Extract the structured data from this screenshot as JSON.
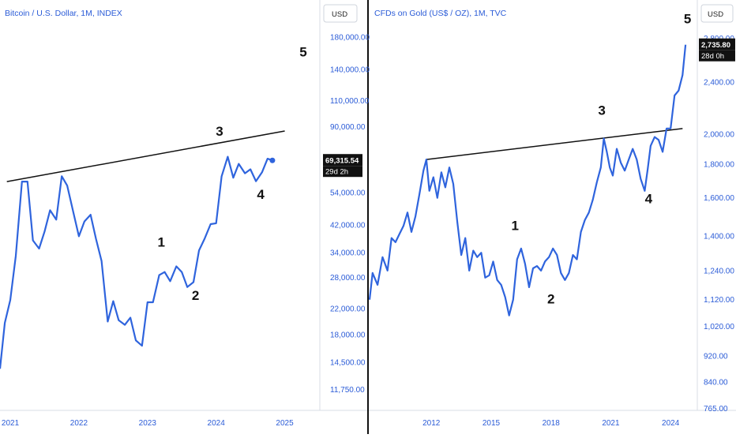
{
  "colors": {
    "series": "#2f64dd",
    "axis_text": "#2a5bd7",
    "trendline": "#111111",
    "divider": "#111111",
    "tag_bg": "#111111"
  },
  "chart_data": [
    {
      "type": "line",
      "title": "Bitcoin / U.S. Dollar, 1M, INDEX",
      "currency_label": "USD",
      "y_scale": "log",
      "ylim": [
        10000,
        240000
      ],
      "y_ticks": [
        {
          "label": "180,000.00",
          "value": 180000
        },
        {
          "label": "140,000.00",
          "value": 140000
        },
        {
          "label": "110,000.00",
          "value": 110000
        },
        {
          "label": "90,000.00",
          "value": 90000
        },
        {
          "label": "54,000.00",
          "value": 54000
        },
        {
          "label": "42,000.00",
          "value": 42000
        },
        {
          "label": "34,000.00",
          "value": 34000
        },
        {
          "label": "28,000.00",
          "value": 28000
        },
        {
          "label": "22,000.00",
          "value": 22000
        },
        {
          "label": "18,000.00",
          "value": 18000
        },
        {
          "label": "14,500.00",
          "value": 14500
        },
        {
          "label": "11,750.00",
          "value": 11750
        }
      ],
      "x_ticks": [
        {
          "label": "2021",
          "value": 2021.0
        },
        {
          "label": "2022",
          "value": 2022.0
        },
        {
          "label": "2023",
          "value": 2023.0
        },
        {
          "label": "2024",
          "value": 2024.0
        },
        {
          "label": "2025",
          "value": 2025.0
        }
      ],
      "xlim": [
        2020.85,
        2025.5
      ],
      "series": [
        {
          "x": [
            2020.85,
            2020.92,
            2021.0,
            2021.08,
            2021.17,
            2021.25,
            2021.33,
            2021.42,
            2021.5,
            2021.58,
            2021.67,
            2021.75,
            2021.83,
            2021.92,
            2022.0,
            2022.08,
            2022.17,
            2022.25,
            2022.33,
            2022.42,
            2022.5,
            2022.58,
            2022.67,
            2022.75,
            2022.83,
            2022.92,
            2023.0,
            2023.08,
            2023.17,
            2023.25,
            2023.33,
            2023.42,
            2023.5,
            2023.58,
            2023.67,
            2023.75,
            2023.83,
            2023.92,
            2024.0,
            2024.08,
            2024.17,
            2024.25,
            2024.33,
            2024.42,
            2024.5,
            2024.58,
            2024.67,
            2024.75,
            2024.82
          ],
          "y": [
            13800,
            19700,
            23500,
            33100,
            58800,
            58800,
            37300,
            35000,
            40000,
            47100,
            43800,
            61300,
            57000,
            46200,
            38500,
            43200,
            45500,
            37700,
            31800,
            19900,
            23300,
            20100,
            19400,
            20500,
            17200,
            16500,
            23100,
            23100,
            28500,
            29200,
            27200,
            30500,
            29200,
            26000,
            27000,
            34500,
            37700,
            42300,
            42600,
            61200,
            71300,
            60600,
            67500,
            62700,
            64700,
            59000,
            63300,
            70200,
            69315.54
          ]
        }
      ],
      "last_value_label": "69,315.54",
      "countdown_label": "29d 2h",
      "trendline": {
        "x": [
          2020.95,
          2025.0
        ],
        "y": [
          58800,
          87000
        ]
      },
      "annotations": [
        {
          "text": "1",
          "x": 2023.2,
          "y": 35500
        },
        {
          "text": "2",
          "x": 2023.7,
          "y": 23500
        },
        {
          "text": "3",
          "x": 2024.05,
          "y": 84000
        },
        {
          "text": "4",
          "x": 2024.65,
          "y": 51500
        },
        {
          "text": "5",
          "x": 2025.27,
          "y": 155000
        }
      ]
    },
    {
      "type": "line",
      "title": "CFDs on Gold (US$ / OZ), 1M, TVC",
      "currency_label": "USD",
      "y_scale": "log",
      "ylim": [
        760,
        3200
      ],
      "y_ticks": [
        {
          "label": "2,800.00",
          "value": 2800
        },
        {
          "label": "2,400.00",
          "value": 2400
        },
        {
          "label": "2,000.00",
          "value": 2000
        },
        {
          "label": "1,800.00",
          "value": 1800
        },
        {
          "label": "1,600.00",
          "value": 1600
        },
        {
          "label": "1,400.00",
          "value": 1400
        },
        {
          "label": "1,240.00",
          "value": 1240
        },
        {
          "label": "1,120.00",
          "value": 1120
        },
        {
          "label": "1,020.00",
          "value": 1020
        },
        {
          "label": "920.00",
          "value": 920
        },
        {
          "label": "840.00",
          "value": 840
        },
        {
          "label": "765.00",
          "value": 765
        }
      ],
      "x_ticks": [
        {
          "label": "2012",
          "value": 2012.0
        },
        {
          "label": "2015",
          "value": 2015.0
        },
        {
          "label": "2018",
          "value": 2018.0
        },
        {
          "label": "2021",
          "value": 2021.0
        },
        {
          "label": "2024",
          "value": 2024.0
        }
      ],
      "xlim": [
        2008.9,
        2025.3
      ],
      "series": [
        {
          "x": [
            2008.9,
            2009.05,
            2009.3,
            2009.55,
            2009.8,
            2010.0,
            2010.2,
            2010.4,
            2010.6,
            2010.8,
            2011.0,
            2011.2,
            2011.4,
            2011.6,
            2011.75,
            2011.9,
            2012.1,
            2012.3,
            2012.5,
            2012.7,
            2012.9,
            2013.1,
            2013.3,
            2013.5,
            2013.7,
            2013.9,
            2014.1,
            2014.3,
            2014.5,
            2014.7,
            2014.9,
            2015.1,
            2015.3,
            2015.5,
            2015.7,
            2015.9,
            2016.1,
            2016.3,
            2016.5,
            2016.7,
            2016.9,
            2017.1,
            2017.3,
            2017.5,
            2017.7,
            2017.9,
            2018.1,
            2018.3,
            2018.5,
            2018.7,
            2018.9,
            2019.1,
            2019.3,
            2019.5,
            2019.7,
            2019.9,
            2020.1,
            2020.3,
            2020.5,
            2020.65,
            2020.8,
            2020.95,
            2021.1,
            2021.3,
            2021.5,
            2021.7,
            2021.9,
            2022.1,
            2022.3,
            2022.5,
            2022.7,
            2022.85,
            2023.0,
            2023.2,
            2023.4,
            2023.6,
            2023.8,
            2024.0,
            2024.2,
            2024.4,
            2024.6,
            2024.75
          ],
          "y": [
            1120,
            1230,
            1180,
            1300,
            1240,
            1390,
            1370,
            1410,
            1450,
            1520,
            1420,
            1500,
            1620,
            1760,
            1830,
            1640,
            1720,
            1600,
            1750,
            1660,
            1780,
            1680,
            1470,
            1310,
            1390,
            1240,
            1330,
            1300,
            1320,
            1210,
            1220,
            1280,
            1200,
            1180,
            1130,
            1060,
            1120,
            1290,
            1340,
            1270,
            1170,
            1250,
            1260,
            1240,
            1280,
            1300,
            1340,
            1310,
            1230,
            1200,
            1230,
            1310,
            1290,
            1420,
            1480,
            1520,
            1590,
            1690,
            1780,
            1970,
            1880,
            1780,
            1730,
            1900,
            1810,
            1760,
            1830,
            1900,
            1830,
            1710,
            1640,
            1770,
            1920,
            1980,
            1960,
            1880,
            2040,
            2040,
            2290,
            2330,
            2460,
            2735.8
          ]
        }
      ],
      "last_value_label": "2,735.80",
      "countdown_label": "28d 0h",
      "trendline": {
        "x": [
          2011.75,
          2024.6
        ],
        "y": [
          1830,
          2040
        ]
      },
      "annotations": [
        {
          "text": "1",
          "x": 2016.2,
          "y": 1430
        },
        {
          "text": "2",
          "x": 2018.0,
          "y": 1105
        },
        {
          "text": "3",
          "x": 2020.55,
          "y": 2140
        },
        {
          "text": "4",
          "x": 2022.9,
          "y": 1570
        },
        {
          "text": "5",
          "x": 2024.85,
          "y": 2950
        }
      ]
    }
  ]
}
